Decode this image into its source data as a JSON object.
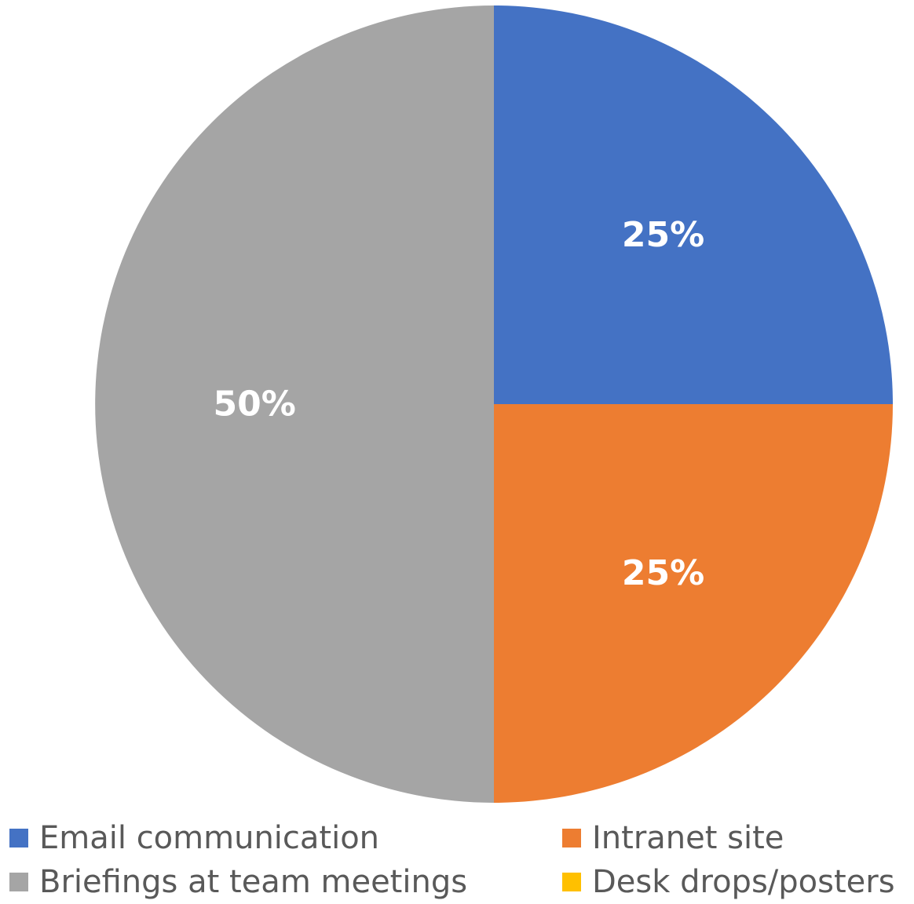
{
  "chart_data": {
    "type": "pie",
    "title": "",
    "categories": [
      "Email communication",
      "Intranet site",
      "Briefings at team meetings",
      "Desk drops/posters"
    ],
    "values": [
      25,
      25,
      50,
      0
    ],
    "data_labels": [
      "25%",
      "25%",
      "50%",
      ""
    ],
    "colors": [
      "#4472C4",
      "#ED7D31",
      "#A5A5A5",
      "#FFC000"
    ],
    "legend_position": "bottom"
  },
  "legend": {
    "items": [
      {
        "label": "Email communication",
        "color": "#4472C4"
      },
      {
        "label": "Intranet site",
        "color": "#ED7D31"
      },
      {
        "label": "Briefings at team meetings",
        "color": "#A5A5A5"
      },
      {
        "label": "Desk drops/posters",
        "color": "#FFC000"
      }
    ]
  }
}
